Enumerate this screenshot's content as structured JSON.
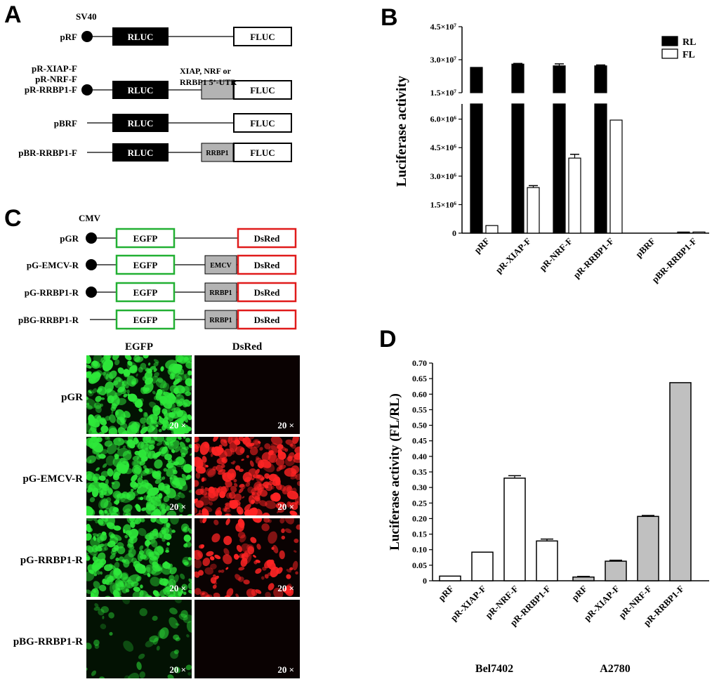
{
  "panels": {
    "a": "A",
    "b": "B",
    "c": "C",
    "d": "D"
  },
  "panel_a": {
    "promoter": "SV40",
    "constructs": [
      {
        "label": "pRF",
        "label_lines": [
          "pRF"
        ],
        "has_promoter": true,
        "insert": "",
        "box1": "RLUC",
        "box2": "FLUC"
      },
      {
        "label": "pR-XIAP-F / pR-NRF-F / pR-RRBP1-F",
        "label_lines": [
          "pR-XIAP-F",
          "pR-NRF-F",
          "pR-RRBP1-F"
        ],
        "has_promoter": true,
        "insert": "",
        "box1": "RLUC",
        "box2": "FLUC"
      },
      {
        "label": "pBRF",
        "label_lines": [
          "pBRF"
        ],
        "has_promoter": false,
        "insert": "",
        "box1": "RLUC",
        "box2": "FLUC"
      },
      {
        "label": "pBR-RRBP1-F",
        "label_lines": [
          "pBR-RRBP1-F"
        ],
        "has_promoter": false,
        "insert": "RRBP1",
        "box1": "RLUC",
        "box2": "FLUC"
      }
    ],
    "insert_note_lines": [
      "XIAP,  NRF or",
      "RRBP1  5’-UTR"
    ]
  },
  "panel_c": {
    "promoter": "CMV",
    "constructs": [
      {
        "label": "pGR",
        "has_promoter": true,
        "insert": "",
        "box1": "EGFP",
        "box2": "DsRed"
      },
      {
        "label": "pG-EMCV-R",
        "has_promoter": true,
        "insert": "EMCV",
        "box1": "EGFP",
        "box2": "DsRed"
      },
      {
        "label": "pG-RRBP1-R",
        "has_promoter": true,
        "insert": "RRBP1",
        "box1": "EGFP",
        "box2": "DsRed"
      },
      {
        "label": "pBG-RRBP1-R",
        "has_promoter": false,
        "insert": "RRBP1",
        "box1": "EGFP",
        "box2": "DsRed"
      }
    ],
    "image_columns": [
      "EGFP",
      "DsRed"
    ],
    "image_rows": [
      {
        "label": "pGR",
        "green": 0.95,
        "red": 0.0
      },
      {
        "label": "pG-EMCV-R",
        "green": 0.9,
        "red": 0.8
      },
      {
        "label": "pG-RRBP1-R",
        "green": 0.8,
        "red": 0.35
      },
      {
        "label": "pBG-RRBP1-R",
        "green": 0.15,
        "red": 0.0
      }
    ],
    "magnification": "20 ×",
    "colors": {
      "green": "#22b033",
      "red": "#e01b1b"
    }
  },
  "chart_data": [
    {
      "type": "bar",
      "panel": "B",
      "categories": [
        "pRF",
        "pR-XIAP-F",
        "pR-NRF-F",
        "pR-RRBP1-F",
        "pBRF",
        "pBR-RRBP1-F"
      ],
      "series": [
        {
          "name": "RL",
          "values": [
            26500000,
            28000000,
            27200000,
            27200000,
            0,
            60000
          ],
          "errors": [
            0,
            300000,
            900000,
            400000,
            0,
            0
          ]
        },
        {
          "name": "FL",
          "values": [
            400000,
            2400000,
            3950000,
            5950000,
            0,
            60000
          ],
          "errors": [
            0,
            100000,
            200000,
            0,
            0,
            0
          ]
        }
      ],
      "ylabel": "Luciferase activity",
      "axis_break": true,
      "lower_ticks": [
        {
          "value": 0,
          "label": "0"
        },
        {
          "value": 1500000,
          "label": "1.5×10⁶"
        },
        {
          "value": 3000000,
          "label": "3.0×10⁶"
        },
        {
          "value": 4500000,
          "label": "4.5×10⁶"
        },
        {
          "value": 6000000,
          "label": "6.0×10⁶"
        }
      ],
      "upper_ticks": [
        {
          "value": 15000000,
          "label": "1.5×10⁷"
        },
        {
          "value": 30000000,
          "label": "3.0×10⁷"
        },
        {
          "value": 45000000,
          "label": "4.5×10⁷"
        }
      ],
      "lower_range": [
        0,
        6800000
      ],
      "upper_range": [
        15000000,
        45000000
      ],
      "legend_position": "top-right",
      "colors": {
        "RL": "#000000",
        "FL": "#ffffff"
      }
    },
    {
      "type": "bar",
      "panel": "D",
      "groups": [
        {
          "name": "Bel7402",
          "categories": [
            "pRF",
            "pR-XIAP-F",
            "pR-NRF-F",
            "pR-RRBP1-F"
          ],
          "values": [
            0.015,
            0.092,
            0.33,
            0.128
          ],
          "errors": [
            0,
            0,
            0.008,
            0.006
          ],
          "color": "#ffffff"
        },
        {
          "name": "A2780",
          "categories": [
            "pRF",
            "pR-XIAP-F",
            "pR-NRF-F",
            "pR-RRBP1-F"
          ],
          "values": [
            0.012,
            0.063,
            0.207,
            0.637
          ],
          "errors": [
            0.002,
            0.003,
            0.003,
            0
          ],
          "color": "#c0c0c0"
        }
      ],
      "ylabel": "Luciferase activity (FL/RL)",
      "ylim": [
        0,
        0.7
      ],
      "yticks": [
        "0",
        "0.05",
        "0.10",
        "0.15",
        "0.20",
        "0.25",
        "0.30",
        "0.35",
        "0.40",
        "0.45",
        "0.50",
        "0.55",
        "0.60",
        "0.65",
        "0.70"
      ]
    }
  ]
}
